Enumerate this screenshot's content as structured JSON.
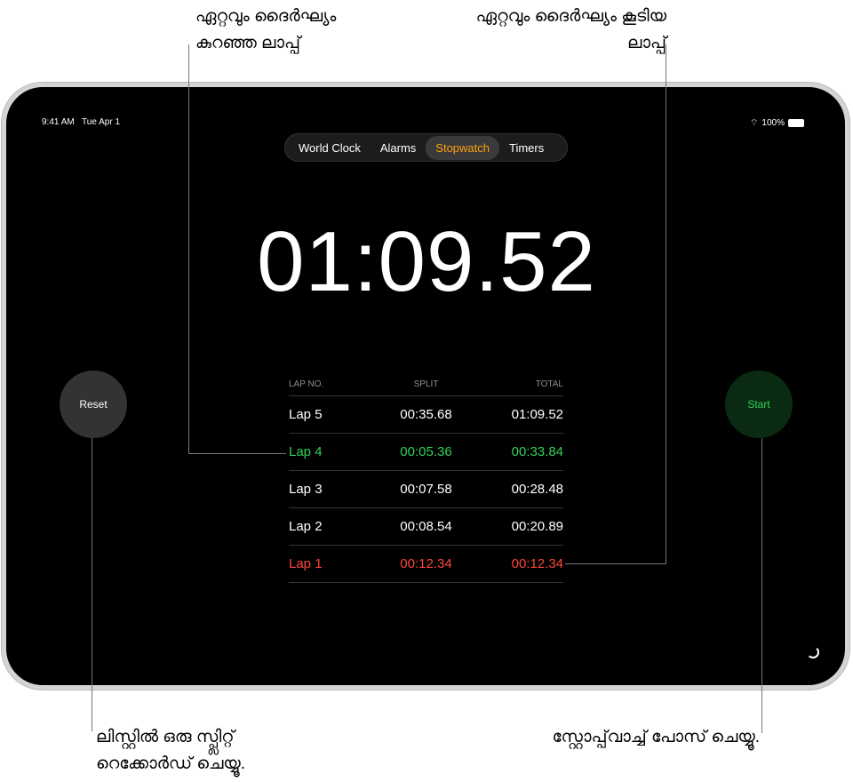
{
  "status": {
    "time": "9:41 AM",
    "date": "Tue Apr 1",
    "battery": "100%"
  },
  "tabs": [
    {
      "label": "World Clock"
    },
    {
      "label": "Alarms"
    },
    {
      "label": "Stopwatch",
      "active": true
    },
    {
      "label": "Timers"
    }
  ],
  "stopwatch": {
    "time": "01:09.52"
  },
  "buttons": {
    "reset": "Reset",
    "start": "Start"
  },
  "laps": {
    "headers": [
      "LAP NO.",
      "SPLIT",
      "TOTAL"
    ],
    "rows": [
      {
        "lap": "Lap 5",
        "split": "00:35.68",
        "total": "01:09.52",
        "color": "#ffffff"
      },
      {
        "lap": "Lap 4",
        "split": "00:05.36",
        "total": "00:33.84",
        "color": "#30d158"
      },
      {
        "lap": "Lap 3",
        "split": "00:07.58",
        "total": "00:28.48",
        "color": "#ffffff"
      },
      {
        "lap": "Lap 2",
        "split": "00:08.54",
        "total": "00:20.89",
        "color": "#ffffff"
      },
      {
        "lap": "Lap 1",
        "split": "00:12.34",
        "total": "00:12.34",
        "color": "#ff453a"
      }
    ]
  },
  "callouts": {
    "shortest": "ഏറ്റവും ദൈർഘ്യം കുറഞ്ഞ ലാപ്പ്",
    "longest": "ഏറ്റവും ദൈർഘ്യം കൂടിയ ലാപ്പ്",
    "reset": "ലിസ്റ്റിൽ ഒരു സ്പ്ലിറ്റ് റെക്കോർഡ് ചെയ്യൂ.",
    "start": "സ്റ്റോപ്പ്‌വാച്ച് പോസ് ചെയ്യൂ."
  },
  "colors": {
    "accent": "#ff9f0a",
    "best": "#30d158",
    "worst": "#ff453a"
  }
}
